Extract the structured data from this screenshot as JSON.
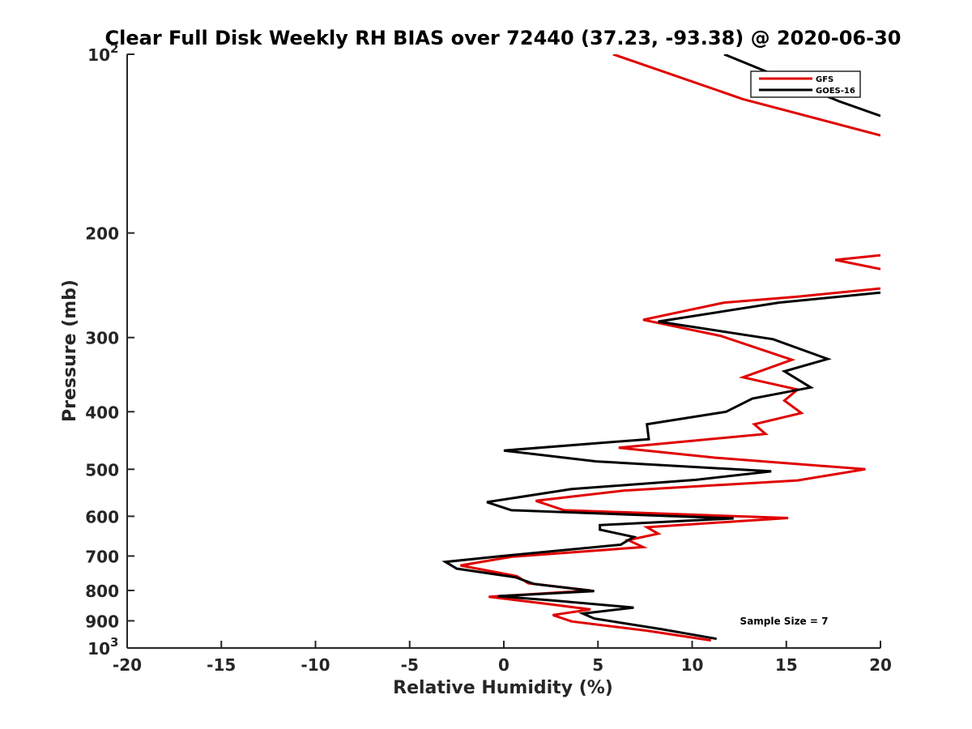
{
  "chart_data": {
    "type": "line",
    "title": "Clear Full Disk Weekly RH BIAS over 72440 (37.23, -93.38) @ 2020-06-30",
    "xlabel": "Relative Humidity (%)",
    "ylabel": "Pressure (mb)",
    "xlim": [
      -20,
      20
    ],
    "ylim": [
      100,
      1000
    ],
    "y_scale": "log",
    "y_reversed": true,
    "grid": false,
    "legend_position": "top-right",
    "annotation": "Sample Size = 7",
    "x_ticks": [
      "-20",
      "-15",
      "-10",
      "-5",
      "0",
      "5",
      "10",
      "15",
      "20"
    ],
    "y_ticks": [
      {
        "value": 100,
        "label": "10",
        "sup": "2"
      },
      {
        "value": 200,
        "label": "200"
      },
      {
        "value": 300,
        "label": "300"
      },
      {
        "value": 400,
        "label": "400"
      },
      {
        "value": 500,
        "label": "500"
      },
      {
        "value": 600,
        "label": "600"
      },
      {
        "value": 700,
        "label": "700"
      },
      {
        "value": 800,
        "label": "800"
      },
      {
        "value": 900,
        "label": "900"
      },
      {
        "value": 1000,
        "label": "10",
        "sup": "3"
      }
    ],
    "series": [
      {
        "name": "GFS",
        "color": "#e00000",
        "segments": [
          [
            [
              5.8,
              100
            ],
            [
              12.7,
              119
            ],
            [
              20,
              137
            ]
          ],
          [
            [
              20,
              218
            ],
            [
              17.6,
              222
            ],
            [
              20,
              230
            ]
          ],
          [
            [
              20,
              248
            ],
            [
              15.6,
              256
            ],
            [
              11.7,
              262
            ],
            [
              7.4,
              280
            ],
            [
              11.5,
              298
            ],
            [
              15.3,
              327
            ],
            [
              12.7,
              350
            ],
            [
              15.6,
              367
            ],
            [
              14.9,
              383
            ],
            [
              15.8,
              402
            ],
            [
              13.3,
              420
            ],
            [
              13.9,
              436
            ],
            [
              6.1,
              460
            ],
            [
              11.2,
              478
            ],
            [
              19.2,
              500
            ],
            [
              15.6,
              522
            ],
            [
              6.4,
              543
            ],
            [
              1.7,
              565
            ],
            [
              3.2,
              586
            ],
            [
              15.1,
              604
            ],
            [
              7.6,
              626
            ],
            [
              8.2,
              642
            ],
            [
              6.6,
              658
            ],
            [
              7.4,
              676
            ],
            [
              0.4,
              702
            ],
            [
              -2.3,
              726
            ],
            [
              0.7,
              757
            ],
            [
              1.3,
              778
            ],
            [
              4.6,
              800
            ],
            [
              -0.8,
              820
            ],
            [
              2.2,
              842
            ],
            [
              4.6,
              861
            ],
            [
              2.6,
              880
            ],
            [
              3.6,
              902
            ],
            [
              7.6,
              935
            ],
            [
              11.0,
              971
            ]
          ]
        ]
      },
      {
        "name": "GOES-16",
        "color": "#000000",
        "segments": [
          [
            [
              11.7,
              100
            ],
            [
              17.8,
              120
            ],
            [
              20,
              127
            ]
          ],
          [
            [
              20,
              252
            ],
            [
              14.6,
              262
            ],
            [
              8.2,
              282
            ],
            [
              14.3,
              302
            ],
            [
              17.2,
              326
            ],
            [
              14.9,
              342
            ],
            [
              16.3,
              364
            ],
            [
              13.2,
              380
            ],
            [
              11.8,
              400
            ],
            [
              7.6,
              420
            ],
            [
              7.7,
              445
            ],
            [
              0.0,
              465
            ],
            [
              4.9,
              485
            ],
            [
              14.2,
              504
            ],
            [
              10.2,
              521
            ],
            [
              3.6,
              540
            ],
            [
              -0.9,
              568
            ],
            [
              0.4,
              586
            ],
            [
              12.2,
              605
            ],
            [
              5.1,
              621
            ],
            [
              5.1,
              632
            ],
            [
              6.9,
              650
            ],
            [
              6.2,
              670
            ],
            [
              -0.1,
              700
            ],
            [
              -3.1,
              716
            ],
            [
              -2.5,
              735
            ],
            [
              0.6,
              760
            ],
            [
              1.6,
              780
            ],
            [
              4.8,
              802
            ],
            [
              -0.3,
              818
            ],
            [
              2.7,
              832
            ],
            [
              6.9,
              855
            ],
            [
              4.2,
              875
            ],
            [
              4.8,
              892
            ],
            [
              8.4,
              930
            ],
            [
              11.3,
              965
            ]
          ]
        ]
      }
    ]
  }
}
